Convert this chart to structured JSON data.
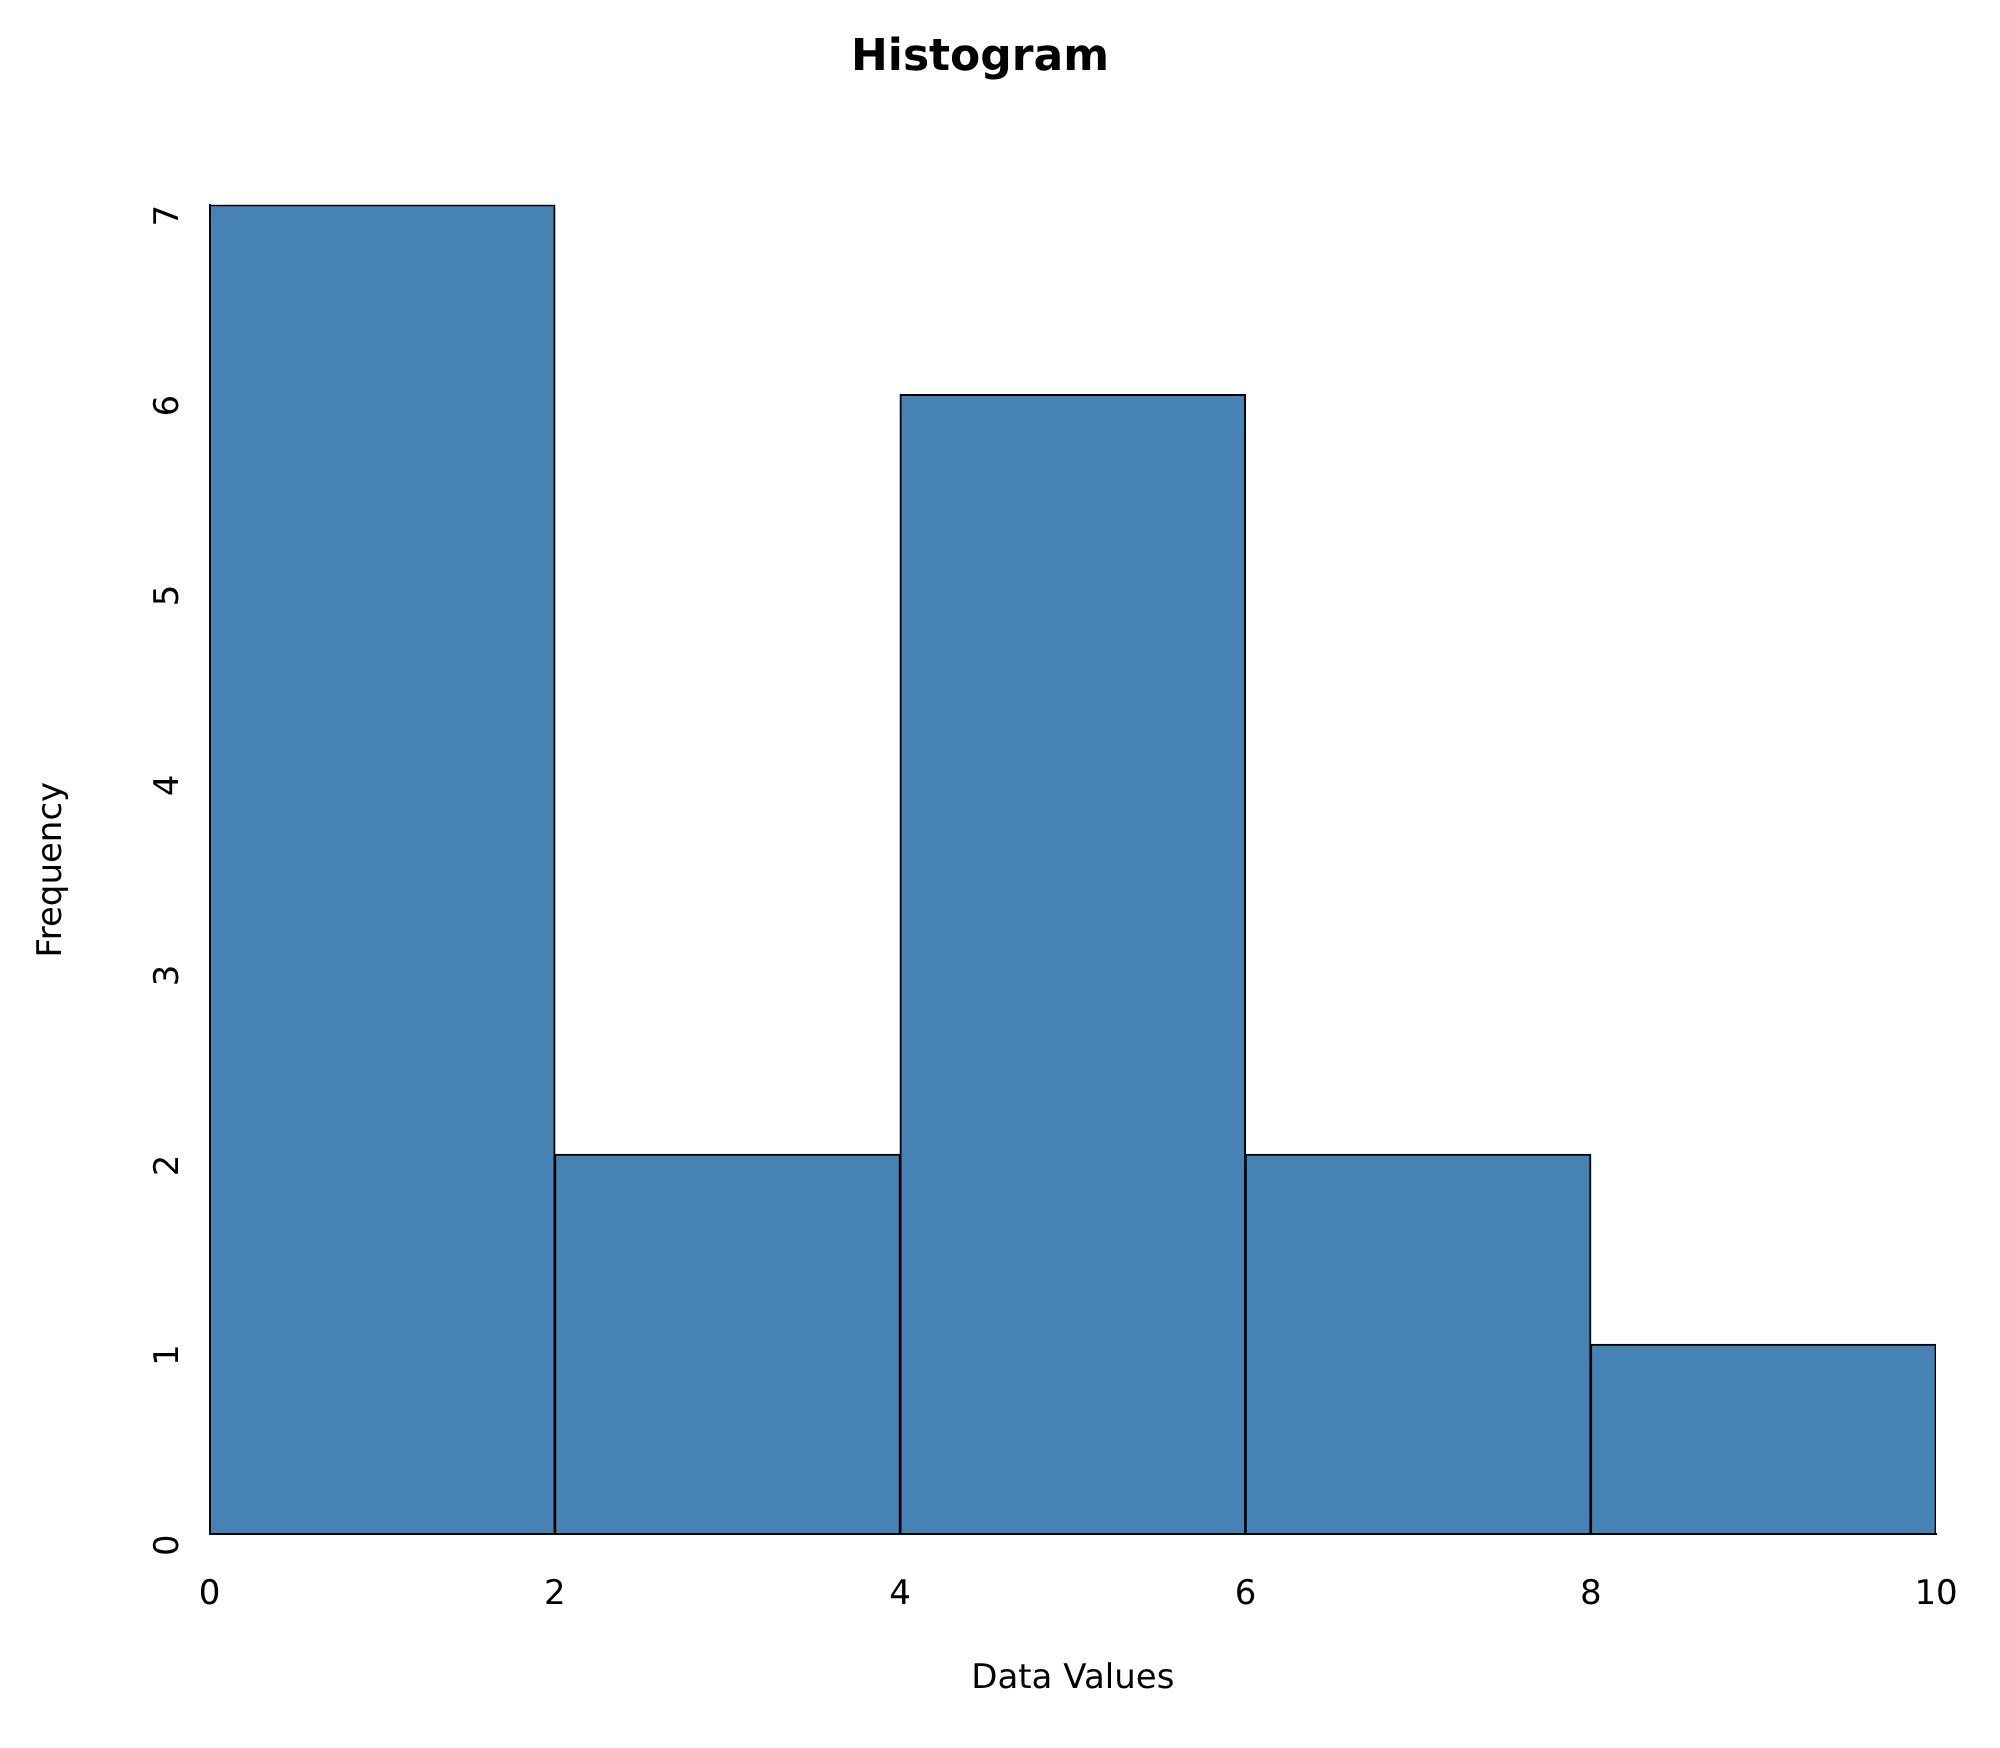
{
  "chart_data": {
    "type": "histogram",
    "title": "Histogram",
    "xlabel": "Data Values",
    "ylabel": "Frequency",
    "bins": [
      0,
      2,
      4,
      6,
      8,
      10
    ],
    "values": [
      7,
      2,
      6,
      2,
      1
    ],
    "color": "#4682b4",
    "xlim": [
      0,
      10
    ],
    "xticks": [
      0,
      2,
      4,
      6,
      8,
      10
    ],
    "ylim": [
      0,
      7
    ],
    "yticks": [
      0,
      1,
      2,
      3,
      4,
      5,
      6,
      7
    ],
    "grid": false
  }
}
